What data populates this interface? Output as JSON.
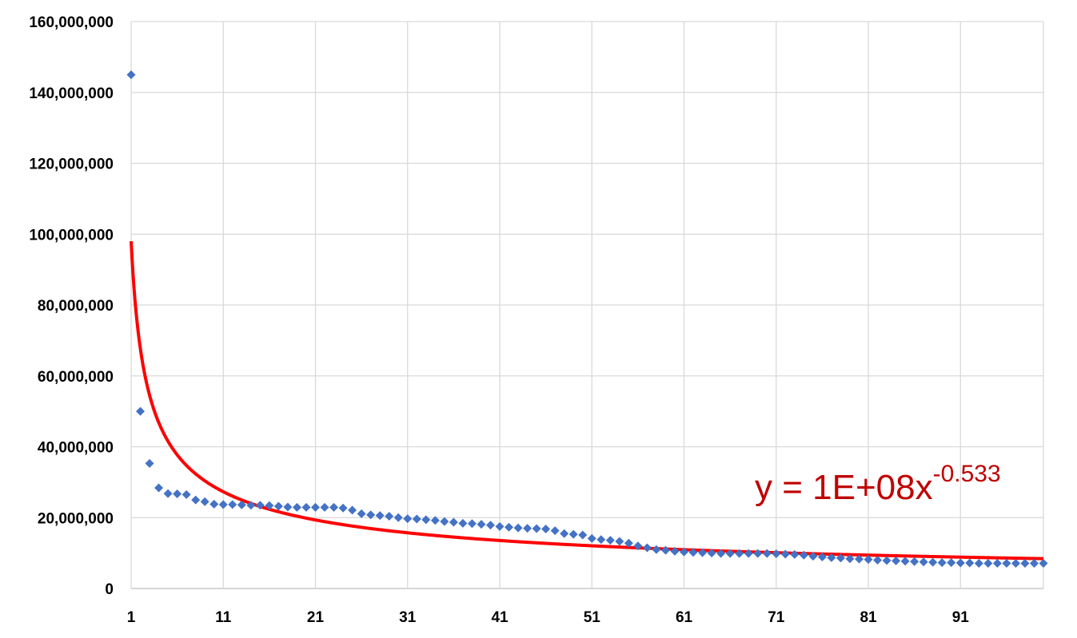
{
  "chart_data": {
    "type": "scatter",
    "title": "",
    "xlabel": "",
    "ylabel": "",
    "xlim": [
      1,
      100
    ],
    "ylim": [
      0,
      160000000
    ],
    "grid": true,
    "y_tick_labels": [
      "0",
      "20,000,000",
      "40,000,000",
      "60,000,000",
      "80,000,000",
      "100,000,000",
      "120,000,000",
      "140,000,000",
      "160,000,000"
    ],
    "y_tick_values": [
      0,
      20000000,
      40000000,
      60000000,
      80000000,
      100000000,
      120000000,
      140000000,
      160000000
    ],
    "x_tick_labels": [
      "1",
      "11",
      "21",
      "31",
      "41",
      "51",
      "61",
      "71",
      "81",
      "91"
    ],
    "x_tick_values": [
      1,
      11,
      21,
      31,
      41,
      51,
      61,
      71,
      81,
      91
    ],
    "series": [
      {
        "marker": "diamond",
        "color": "#4472c4",
        "x": [
          1,
          2,
          3,
          4,
          5,
          6,
          7,
          8,
          9,
          10,
          11,
          12,
          13,
          14,
          15,
          16,
          17,
          18,
          19,
          20,
          21,
          22,
          23,
          24,
          25,
          26,
          27,
          28,
          29,
          30,
          31,
          32,
          33,
          34,
          35,
          36,
          37,
          38,
          39,
          40,
          41,
          42,
          43,
          44,
          45,
          46,
          47,
          48,
          49,
          50,
          51,
          52,
          53,
          54,
          55,
          56,
          57,
          58,
          59,
          60,
          61,
          62,
          63,
          64,
          65,
          66,
          67,
          68,
          69,
          70,
          71,
          72,
          73,
          74,
          75,
          76,
          77,
          78,
          79,
          80,
          81,
          82,
          83,
          84,
          85,
          86,
          87,
          88,
          89,
          90,
          91,
          92,
          93,
          94,
          95,
          96,
          97,
          98,
          99,
          100
        ],
        "y": [
          145000000,
          50000000,
          35300000,
          28400000,
          26800000,
          26700000,
          26500000,
          25000000,
          24500000,
          23800000,
          23700000,
          23700000,
          23600000,
          23500000,
          23500000,
          23400000,
          23200000,
          23000000,
          22900000,
          22900000,
          22900000,
          22900000,
          22900000,
          22700000,
          22100000,
          21100000,
          20800000,
          20600000,
          20400000,
          20000000,
          19700000,
          19600000,
          19400000,
          19200000,
          18900000,
          18700000,
          18400000,
          18300000,
          18100000,
          17900000,
          17500000,
          17300000,
          17100000,
          17000000,
          16900000,
          16800000,
          16300000,
          15500000,
          15300000,
          15100000,
          14100000,
          13800000,
          13600000,
          13300000,
          12800000,
          12000000,
          11500000,
          11000000,
          10800000,
          10500000,
          10300000,
          10200000,
          10100000,
          10000000,
          9900000,
          9900000,
          9900000,
          9900000,
          9900000,
          9900000,
          9800000,
          9700000,
          9600000,
          9400000,
          9100000,
          8900000,
          8700000,
          8600000,
          8400000,
          8300000,
          8200000,
          8000000,
          7900000,
          7800000,
          7700000,
          7600000,
          7500000,
          7400000,
          7300000,
          7300000,
          7200000,
          7200000,
          7100000,
          7100000,
          7100000,
          7100000,
          7100000,
          7100000,
          7100000,
          7100000
        ]
      }
    ],
    "trendline": {
      "type": "power",
      "coefficient": 98000000,
      "exponent": -0.533,
      "color": "#ff0000",
      "equation_prefix": "y = 1E+08x",
      "equation_exponent": "-0.533",
      "equation_color": "#c00000"
    }
  }
}
